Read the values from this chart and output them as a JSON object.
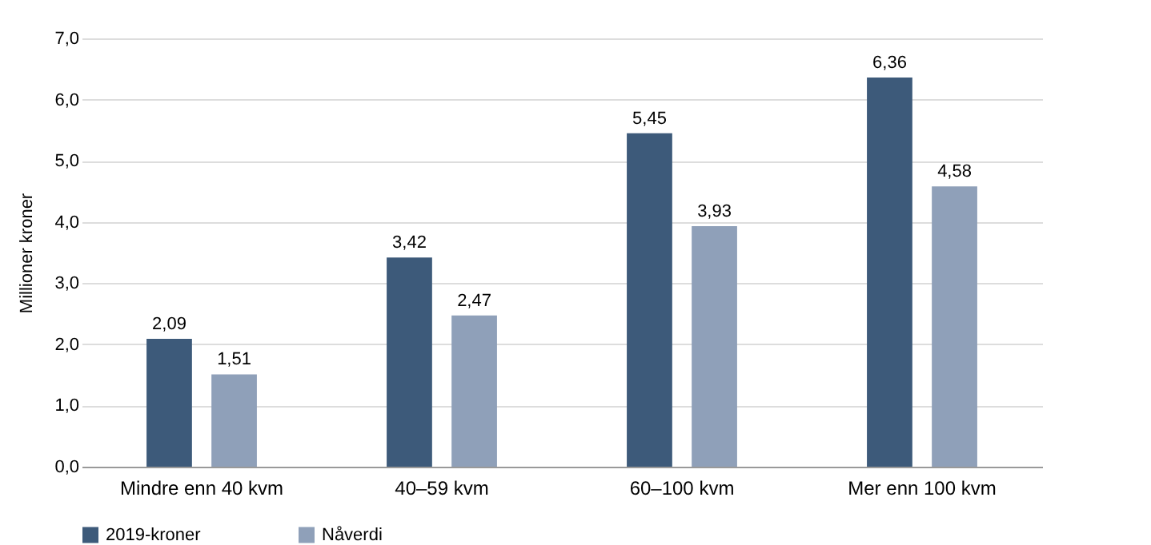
{
  "chart_data": {
    "type": "bar",
    "ylabel": "Millioner kroner",
    "categories": [
      "Mindre enn 40 kvm",
      "40–59 kvm",
      "60–100 kvm",
      "Mer enn 100 kvm"
    ],
    "series": [
      {
        "name": "2019-kroner",
        "color": "#3d5a7a",
        "values": [
          2.09,
          3.42,
          5.45,
          6.36
        ],
        "value_labels": [
          "2,09",
          "3,42",
          "5,45",
          "6,36"
        ]
      },
      {
        "name": "Nåverdi",
        "color": "#8fa0b9",
        "values": [
          1.51,
          2.47,
          3.93,
          4.58
        ],
        "value_labels": [
          "1,51",
          "2,47",
          "3,93",
          "4,58"
        ]
      }
    ],
    "ylim": [
      0,
      7
    ],
    "yticks": [
      {
        "value": 0,
        "label": "0,0"
      },
      {
        "value": 1,
        "label": "1,0"
      },
      {
        "value": 2,
        "label": "2,0"
      },
      {
        "value": 3,
        "label": "3,0"
      },
      {
        "value": 4,
        "label": "4,0"
      },
      {
        "value": 5,
        "label": "5,0"
      },
      {
        "value": 6,
        "label": "6,0"
      },
      {
        "value": 7,
        "label": "7,0"
      }
    ],
    "grid": "y",
    "legend": "bottom"
  }
}
